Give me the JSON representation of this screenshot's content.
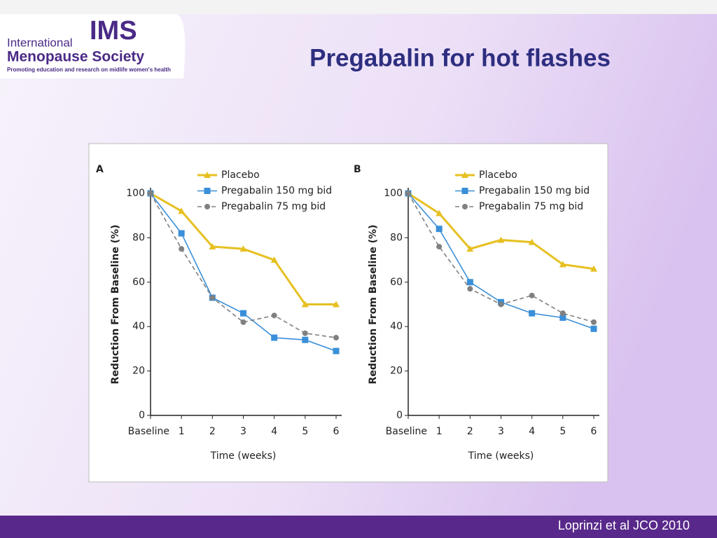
{
  "logo": {
    "line1": "International",
    "brand": "IMS",
    "line2": "Menopause Society",
    "tagline": "Promoting education and research on midlife women's health"
  },
  "title": "Pregabalin for hot flashes",
  "footer": "Loprinzi et al JCO 2010",
  "chart_data": [
    {
      "type": "line",
      "panel": "A",
      "xlabel": "Time (weeks)",
      "ylabel": "Reduction From Baseline (%)",
      "categories": [
        "Baseline",
        "1",
        "2",
        "3",
        "4",
        "5",
        "6"
      ],
      "ylim": [
        0,
        100
      ],
      "yticks": [
        0,
        20,
        40,
        60,
        80,
        100
      ],
      "grid": false,
      "legend": "upper right",
      "series": [
        {
          "name": "Placebo",
          "color": "#e6c020",
          "marker": "triangle",
          "linestyle": "solid",
          "values": [
            100,
            92,
            76,
            75,
            70,
            50,
            50
          ]
        },
        {
          "name": "Pregabalin 150 mg bid",
          "color": "#3a8fd8",
          "marker": "square",
          "linestyle": "solid",
          "values": [
            100,
            82,
            53,
            46,
            35,
            34,
            29
          ]
        },
        {
          "name": "Pregabalin 75 mg bid",
          "color": "#808080",
          "marker": "circle",
          "linestyle": "dashed",
          "values": [
            100,
            75,
            53,
            42,
            45,
            37,
            35
          ]
        }
      ]
    },
    {
      "type": "line",
      "panel": "B",
      "xlabel": "Time (weeks)",
      "ylabel": "Reduction From Baseline (%)",
      "categories": [
        "Baseline",
        "1",
        "2",
        "3",
        "4",
        "5",
        "6"
      ],
      "ylim": [
        0,
        100
      ],
      "yticks": [
        0,
        20,
        40,
        60,
        80,
        100
      ],
      "grid": false,
      "legend": "upper right",
      "series": [
        {
          "name": "Placebo",
          "color": "#e6c020",
          "marker": "triangle",
          "linestyle": "solid",
          "values": [
            100,
            91,
            75,
            79,
            78,
            68,
            66
          ]
        },
        {
          "name": "Pregabalin 150 mg bid",
          "color": "#3a8fd8",
          "marker": "square",
          "linestyle": "solid",
          "values": [
            100,
            84,
            60,
            51,
            46,
            44,
            39
          ]
        },
        {
          "name": "Pregabalin 75 mg bid",
          "color": "#808080",
          "marker": "circle",
          "linestyle": "dashed",
          "values": [
            100,
            76,
            57,
            50,
            54,
            46,
            42
          ]
        }
      ]
    }
  ]
}
